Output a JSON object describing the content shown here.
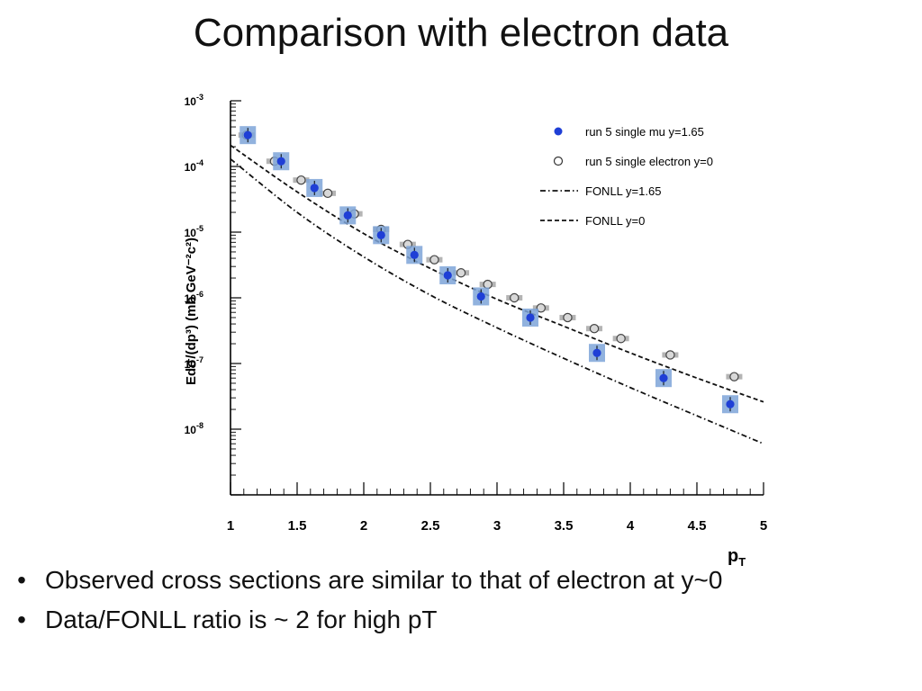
{
  "slide": {
    "title": "Comparison with electron data",
    "bullets": [
      "Observed cross sections are similar to that of electron at y~0",
      "Data/FONLL ratio is ~ 2 for high pT"
    ]
  },
  "chart_data": {
    "type": "scatter",
    "xlabel": "p",
    "xlabel_sub": "T",
    "ylabel": "Edσ/(dp³) (mb GeV⁻²c²)",
    "xlim": [
      1,
      5
    ],
    "ylim_log10": [
      -9,
      -3
    ],
    "yscale": "log",
    "x_ticks": [
      "1",
      "1.5",
      "2",
      "2.5",
      "3",
      "3.5",
      "4",
      "4.5",
      "5"
    ],
    "y_ticks": [
      {
        "base": "10",
        "exp": "-3",
        "log10": -3
      },
      {
        "base": "10",
        "exp": "-4",
        "log10": -4
      },
      {
        "base": "10",
        "exp": "-5",
        "log10": -5
      },
      {
        "base": "10",
        "exp": "-6",
        "log10": -6
      },
      {
        "base": "10",
        "exp": "-7",
        "log10": -7
      },
      {
        "base": "10",
        "exp": "-8",
        "log10": -8
      }
    ],
    "legend_position": "top-right",
    "grid": false,
    "series": [
      {
        "name": "run 5 single mu y=1.65",
        "marker": "filled-circle",
        "color": "#1f3fd6",
        "syst_color": "#7ea4d8",
        "x": [
          1.13,
          1.38,
          1.63,
          1.88,
          2.13,
          2.38,
          2.63,
          2.88,
          3.25,
          3.75,
          4.25,
          4.75
        ],
        "y": [
          0.0003,
          0.00012,
          4.7e-05,
          1.8e-05,
          9e-06,
          4.5e-06,
          2.2e-06,
          1.05e-06,
          5e-07,
          1.45e-07,
          6e-08,
          2.4e-08
        ]
      },
      {
        "name": "run 5 single electron y=0",
        "marker": "open-circle",
        "color": "#444444",
        "syst_color": "#b4b4b4",
        "x": [
          1.12,
          1.33,
          1.53,
          1.73,
          1.93,
          2.13,
          2.33,
          2.53,
          2.73,
          2.93,
          3.13,
          3.33,
          3.53,
          3.73,
          3.93,
          4.3,
          4.78
        ],
        "y": [
          0.0003,
          0.00012,
          6.2e-05,
          3.9e-05,
          1.9e-05,
          1.1e-05,
          6.5e-06,
          3.8e-06,
          2.4e-06,
          1.6e-06,
          1e-06,
          7e-07,
          5e-07,
          3.4e-07,
          2.4e-07,
          1.35e-07,
          6.3e-08
        ]
      },
      {
        "name": "FONLL y=1.65",
        "line": "dash-dot",
        "color": "#111111",
        "x": [
          1.0,
          1.5,
          2.0,
          2.5,
          3.0,
          3.5,
          4.0,
          4.5,
          5.0
        ],
        "y": [
          0.00013,
          2e-05,
          4.2e-06,
          1.1e-06,
          3.5e-07,
          1.2e-07,
          4.3e-08,
          1.6e-08,
          6e-09
        ]
      },
      {
        "name": "FONLL y=0",
        "line": "dashed",
        "color": "#111111",
        "x": [
          1.0,
          1.5,
          2.0,
          2.5,
          3.0,
          3.5,
          4.0,
          4.5,
          5.0
        ],
        "y": [
          0.00021,
          4.1e-05,
          9.5e-06,
          2.8e-06,
          9.5e-07,
          3.7e-07,
          1.45e-07,
          6e-08,
          2.6e-08
        ]
      }
    ]
  }
}
